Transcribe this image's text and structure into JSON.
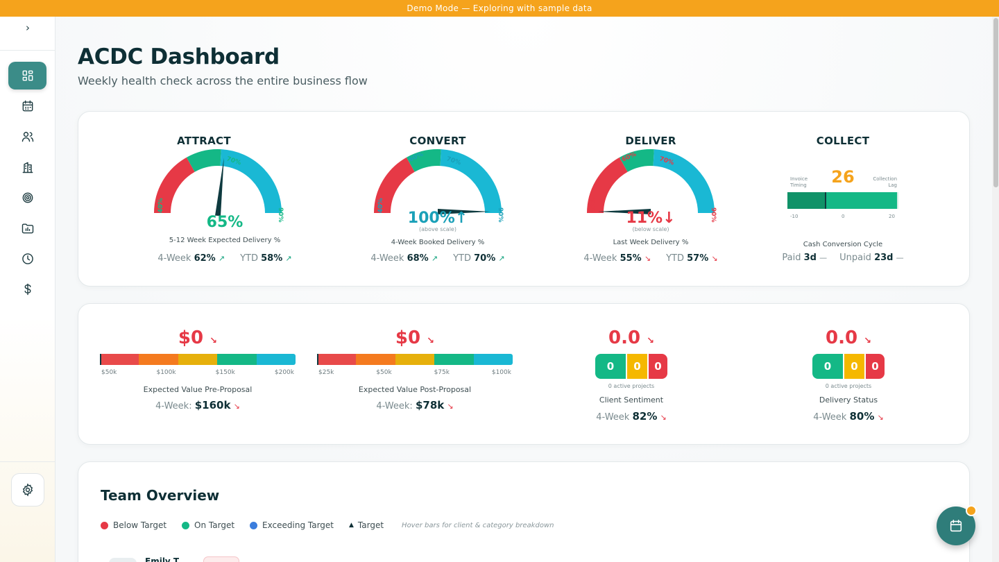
{
  "banner": "Demo Mode — Exploring with sample data",
  "sidebar": {
    "toggle": "›",
    "items": [
      {
        "name": "dashboard",
        "active": true
      },
      {
        "name": "calendar"
      },
      {
        "name": "team"
      },
      {
        "name": "clients"
      },
      {
        "name": "goals"
      },
      {
        "name": "projects"
      },
      {
        "name": "time"
      },
      {
        "name": "finance"
      }
    ]
  },
  "page": {
    "title": "ACDC Dashboard",
    "subtitle": "Weekly health check across the entire business flow"
  },
  "phases": {
    "attract": {
      "title": "ATTRACT",
      "value": "65%",
      "value_num": 65,
      "note": "",
      "caption": "5-12 Week Expected Delivery %",
      "l4w_label": "4-Week",
      "l4w": "62%",
      "l4w_trend": "↗",
      "ytd_label": "YTD",
      "ytd": "58%",
      "ytd_trend": "↗",
      "tick40": "40%",
      "tick60": "60%",
      "tick70": "70%",
      "tick90": "90%"
    },
    "convert": {
      "title": "CONVERT",
      "value": "100%",
      "value_num": 100,
      "arrow": "↑",
      "note": "(above scale)",
      "caption": "4-Week Booked Delivery %",
      "l4w_label": "4-Week",
      "l4w": "68%",
      "l4w_trend": "↗",
      "ytd_label": "YTD",
      "ytd": "70%",
      "ytd_trend": "↗",
      "tick40": "40%",
      "tick60": "60%",
      "tick70": "70%",
      "tick90": "90%"
    },
    "deliver": {
      "title": "DELIVER",
      "value": "11%",
      "value_num": 11,
      "arrow": "↓",
      "note": "(below scale)",
      "caption": "Last Week Delivery %",
      "l4w_label": "4-Week",
      "l4w": "55%",
      "l4w_trend": "↘",
      "ytd_label": "YTD",
      "ytd": "57%",
      "ytd_trend": "↘",
      "tick40": "40%",
      "tick60": "60%",
      "tick70": "70%",
      "tick90": "90%"
    },
    "collect": {
      "title": "COLLECT",
      "value": "26",
      "left_label_1": "Invoice",
      "left_label_2": "Timing",
      "right_label_1": "Collection",
      "right_label_2": "Lag",
      "axis_min": "-10",
      "axis_mid": "0",
      "axis_max": "20",
      "caption": "Cash Conversion Cycle",
      "paid_label": "Paid",
      "paid": "3d",
      "paid_trend": "—",
      "unpaid_label": "Unpaid",
      "unpaid": "23d",
      "unpaid_trend": "—"
    }
  },
  "metrics": {
    "pre_proposal": {
      "value": "$0",
      "trend": "↘",
      "ticks": [
        "$50k",
        "$100k",
        "$150k",
        "$200k"
      ],
      "caption": "Expected Value Pre-Proposal",
      "l4w_label": "4-Week:",
      "l4w": "$160k",
      "l4w_trend": "↘"
    },
    "post_proposal": {
      "value": "$0",
      "trend": "↘",
      "ticks": [
        "$25k",
        "$50k",
        "$75k",
        "$100k"
      ],
      "caption": "Expected Value Post-Proposal",
      "l4w_label": "4-Week:",
      "l4w": "$78k",
      "l4w_trend": "↘"
    },
    "client_sentiment": {
      "value": "0.0",
      "trend": "↘",
      "boxes": [
        "0",
        "0",
        "0"
      ],
      "active": "0 active projects",
      "caption": "Client Sentiment",
      "l4w_label": "4-Week",
      "l4w": "82%",
      "l4w_trend": "↘"
    },
    "delivery_status": {
      "value": "0.0",
      "trend": "↘",
      "boxes": [
        "0",
        "0",
        "0"
      ],
      "active": "0 active projects",
      "caption": "Delivery Status",
      "l4w_label": "4-Week",
      "l4w": "80%",
      "l4w_trend": "↘"
    }
  },
  "team": {
    "title": "Team Overview",
    "legend": {
      "below": "Below Target",
      "on": "On Target",
      "exceeding": "Exceeding Target",
      "target": "Target",
      "hint": "Hover bars for client & category breakdown"
    },
    "first_row_name": "Emily T."
  },
  "colors": {
    "red": "#e63946",
    "green": "#14b886",
    "blue": "#1ab8d4",
    "teal": "#3b8c88",
    "orange": "#f5a31c"
  }
}
